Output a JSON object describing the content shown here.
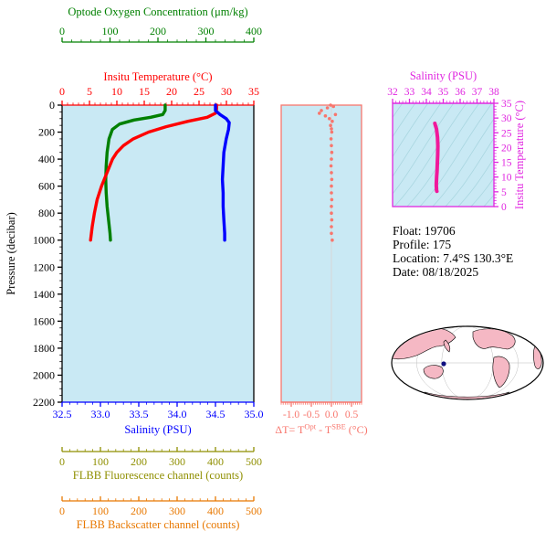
{
  "plot_bg": "#c9e9f4",
  "float_info": {
    "float_line": "Float:  19706",
    "profile_line": "Profile:  175",
    "location_line": "Location:  7.4°S  130.3°E",
    "date_line": "Date:  08/18/2025"
  },
  "map": {
    "land_color": "#f5b8c4",
    "ocean_color": "#ffffff",
    "outline_color": "#000000",
    "marker": {
      "name": "profile-location-marker",
      "color": "#101080",
      "location": "7.4°S 130.3°E"
    }
  },
  "chart_data": [
    {
      "type": "line",
      "name": "profile-plot",
      "ylabel": "Pressure (decibar)",
      "ylim": [
        0,
        2200
      ],
      "yticks": [
        0,
        200,
        400,
        600,
        800,
        1000,
        1200,
        1400,
        1600,
        1800,
        2000,
        2200
      ],
      "series": [
        {
          "name": "insitu-temperature",
          "label": "Insitu Temperature (°C)",
          "color": "#ff0000",
          "xlim": [
            0,
            35
          ],
          "xticks": [
            0,
            5,
            10,
            15,
            20,
            25,
            30,
            35
          ],
          "minor_step": 1,
          "decimals": 0,
          "points": [
            [
              28.2,
              0
            ],
            [
              28.2,
              30
            ],
            [
              28.0,
              60
            ],
            [
              26.5,
              90
            ],
            [
              23.0,
              120
            ],
            [
              19.0,
              160
            ],
            [
              15.8,
              200
            ],
            [
              13.0,
              250
            ],
            [
              11.2,
              300
            ],
            [
              10.0,
              350
            ],
            [
              9.2,
              400
            ],
            [
              8.2,
              500
            ],
            [
              7.2,
              600
            ],
            [
              6.4,
              700
            ],
            [
              5.9,
              800
            ],
            [
              5.5,
              900
            ],
            [
              5.2,
              1000
            ]
          ]
        },
        {
          "name": "optode-oxygen",
          "label": "Optode Oxygen Concentration (μm/kg)",
          "color": "#008000",
          "xlim": [
            0,
            400
          ],
          "xticks": [
            0,
            100,
            200,
            300,
            400
          ],
          "minor_step": 20,
          "decimals": 0,
          "points": [
            [
              215,
              0
            ],
            [
              215,
              40
            ],
            [
              210,
              70
            ],
            [
              185,
              90
            ],
            [
              150,
              110
            ],
            [
              120,
              140
            ],
            [
              105,
              180
            ],
            [
              98,
              250
            ],
            [
              94,
              350
            ],
            [
              92,
              450
            ],
            [
              91,
              550
            ],
            [
              92,
              650
            ],
            [
              94,
              750
            ],
            [
              97,
              850
            ],
            [
              100,
              950
            ],
            [
              101,
              1000
            ]
          ]
        },
        {
          "name": "salinity",
          "label": "Salinity (PSU)",
          "color": "#0000ff",
          "xlim": [
            32.5,
            35.0
          ],
          "xticks": [
            32.5,
            33.0,
            33.5,
            34.0,
            34.5,
            35.0
          ],
          "minor_step": 0.1,
          "decimals": 1,
          "points": [
            [
              34.5,
              0
            ],
            [
              34.5,
              40
            ],
            [
              34.56,
              70
            ],
            [
              34.64,
              100
            ],
            [
              34.68,
              130
            ],
            [
              34.67,
              180
            ],
            [
              34.64,
              250
            ],
            [
              34.61,
              350
            ],
            [
              34.6,
              450
            ],
            [
              34.59,
              550
            ],
            [
              34.6,
              650
            ],
            [
              34.6,
              750
            ],
            [
              34.61,
              850
            ],
            [
              34.62,
              950
            ],
            [
              34.62,
              1000
            ]
          ]
        }
      ],
      "extra_axes": [
        {
          "name": "flbb-fluorescence",
          "label": "FLBB Fluorescence channel (counts)",
          "color": "#8f8f00",
          "xlim": [
            0,
            500
          ],
          "xticks": [
            0,
            100,
            200,
            300,
            400,
            500
          ],
          "minor_step": 20
        },
        {
          "name": "flbb-backscatter",
          "label": "FLBB Backscatter channel (counts)",
          "color": "#e87800",
          "xlim": [
            0,
            500
          ],
          "xticks": [
            0,
            100,
            200,
            300,
            400,
            500
          ],
          "minor_step": 20
        }
      ]
    },
    {
      "type": "scatter",
      "name": "delta-t-plot",
      "xlabel_parts": [
        "ΔT= T",
        "Opt",
        " - T",
        "SBE",
        " (°C)"
      ],
      "xlim": [
        -1.25,
        0.75
      ],
      "xticks": [
        -1.0,
        -0.5,
        0.0,
        0.5
      ],
      "minor_step": 0.05,
      "decimals": 1,
      "ylim": [
        0,
        2200
      ],
      "color": "#f8766d",
      "points": [
        [
          -0.02,
          0
        ],
        [
          0.05,
          10
        ],
        [
          -0.1,
          20
        ],
        [
          -0.25,
          40
        ],
        [
          -0.3,
          60
        ],
        [
          0.1,
          70
        ],
        [
          -0.15,
          80
        ],
        [
          -0.05,
          100
        ],
        [
          0.02,
          120
        ],
        [
          -0.02,
          150
        ],
        [
          0.0,
          175
        ],
        [
          0.01,
          200
        ],
        [
          -0.01,
          250
        ],
        [
          0.0,
          300
        ],
        [
          0.01,
          350
        ],
        [
          0.0,
          400
        ],
        [
          -0.01,
          450
        ],
        [
          0.0,
          500
        ],
        [
          0.01,
          550
        ],
        [
          0.0,
          600
        ],
        [
          0.0,
          650
        ],
        [
          0.01,
          700
        ],
        [
          0.0,
          750
        ],
        [
          0.0,
          800
        ],
        [
          0.01,
          850
        ],
        [
          0.0,
          900
        ],
        [
          0.0,
          950
        ],
        [
          0.02,
          1000
        ]
      ]
    },
    {
      "type": "line",
      "name": "ts-diagram",
      "xlabel": "Salinity (PSU)",
      "xlim": [
        32,
        38
      ],
      "xticks": [
        32,
        33,
        34,
        35,
        36,
        37,
        38
      ],
      "x_minor": 0.2,
      "ylabel": "Insitu Temperature (°C)",
      "ylim": [
        0,
        35
      ],
      "yticks": [
        0,
        5,
        10,
        15,
        20,
        25,
        30,
        35
      ],
      "y_minor": 1,
      "axis_color": "#e026e0",
      "curve_color": "#f0199b",
      "contour_color": "#a9d6e0",
      "points": [
        [
          34.5,
          28.2
        ],
        [
          34.52,
          27.8
        ],
        [
          34.6,
          26.3
        ],
        [
          34.66,
          23.5
        ],
        [
          34.68,
          20.5
        ],
        [
          34.67,
          17.5
        ],
        [
          34.65,
          14.5
        ],
        [
          34.63,
          12.0
        ],
        [
          34.61,
          10.3
        ],
        [
          34.6,
          9.0
        ],
        [
          34.59,
          7.8
        ],
        [
          34.59,
          6.9
        ],
        [
          34.6,
          6.2
        ],
        [
          34.6,
          5.7
        ],
        [
          34.61,
          5.4
        ],
        [
          34.62,
          5.2
        ]
      ]
    }
  ]
}
